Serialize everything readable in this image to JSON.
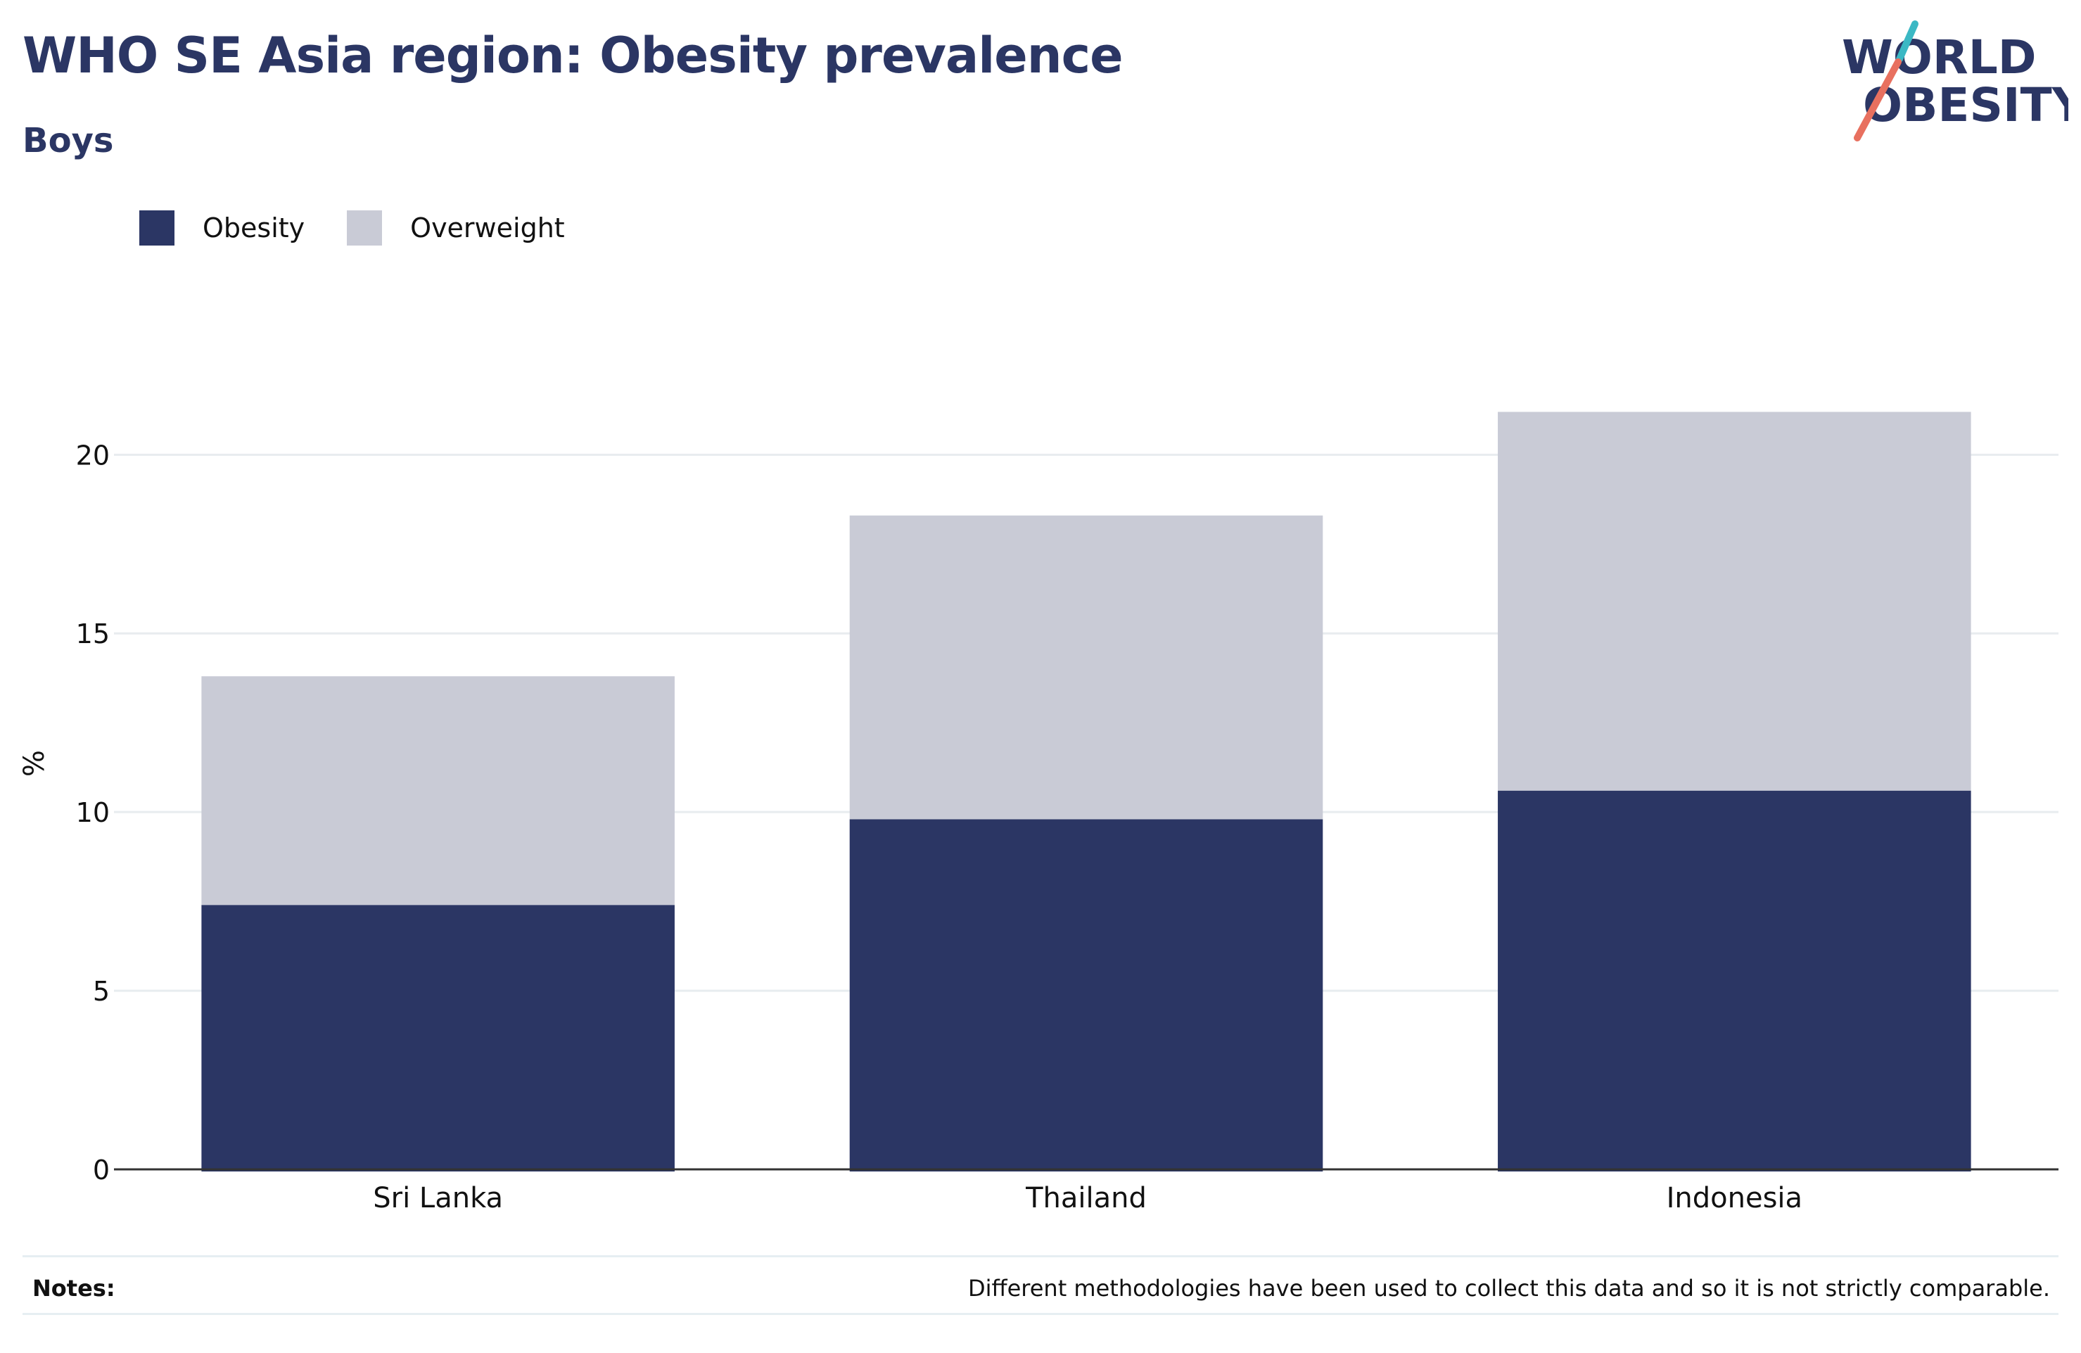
{
  "header": {
    "title": "WHO SE Asia region: Obesity prevalence",
    "subtitle": "Boys"
  },
  "logo": {
    "line1": "WORLD",
    "line2": "OBESITY",
    "colors": {
      "text": "#2b3664",
      "slash_top": "#3bb8c4",
      "slash_bottom": "#e8705f"
    }
  },
  "notes": {
    "label": "Notes:",
    "text": "Different methodologies have been used to collect this data and so it is not strictly comparable."
  },
  "chart_data": {
    "type": "bar",
    "stacked": true,
    "title": "WHO SE Asia region: Obesity prevalence",
    "subtitle": "Boys",
    "xlabel": "",
    "ylabel": "%",
    "categories": [
      "Sri Lanka",
      "Thailand",
      "Indonesia"
    ],
    "series": [
      {
        "name": "Obesity",
        "color": "#2b3664",
        "values": [
          7.4,
          9.8,
          10.6
        ]
      },
      {
        "name": "Overweight",
        "color": "#c9cbd6",
        "values": [
          6.4,
          8.5,
          10.6
        ]
      }
    ],
    "ylim": [
      0,
      21.7
    ],
    "yticks": [
      "0",
      "5",
      "10",
      "15",
      "20"
    ],
    "grid": true,
    "legend_position": "top-left"
  }
}
